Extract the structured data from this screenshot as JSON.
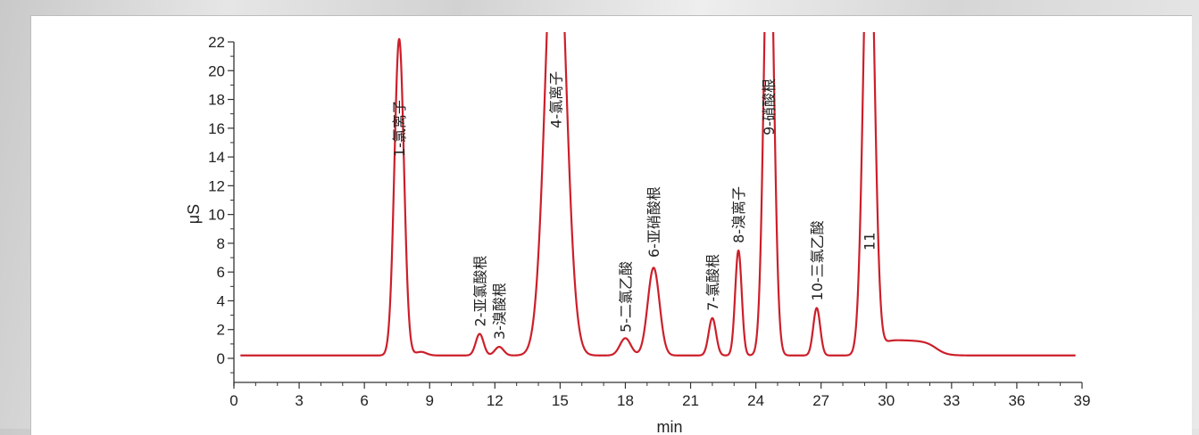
{
  "chart_data": {
    "type": "line",
    "xlabel": "min",
    "ylabel": "μS",
    "xlim": [
      0,
      39
    ],
    "ylim": [
      -2,
      22
    ],
    "xticks": [
      "0",
      "3",
      "6",
      "9",
      "12",
      "15",
      "18",
      "21",
      "24",
      "27",
      "30",
      "33",
      "36",
      "39"
    ],
    "yticks": [
      "0",
      "2",
      "4",
      "6",
      "8",
      "10",
      "12",
      "14",
      "16",
      "18",
      "20",
      "22"
    ],
    "series_color": "#cc1f2a",
    "baseline": 0.2,
    "peaks": [
      {
        "label": "1-氯离子",
        "rt": 7.6,
        "height": 22.0,
        "width": 0.22,
        "label_y": 14.0
      },
      {
        "label": "",
        "rt": 8.6,
        "height": 0.25,
        "width": 0.25,
        "label_y": 0
      },
      {
        "label": "2-亚氯酸根",
        "rt": 11.3,
        "height": 1.5,
        "width": 0.18,
        "label_y": 2.2
      },
      {
        "label": "3-溴酸根",
        "rt": 12.2,
        "height": 0.6,
        "width": 0.2,
        "label_y": 1.3
      },
      {
        "label": "4-氯离子",
        "rt": 14.8,
        "height": 34.0,
        "width": 0.45,
        "label_y": 16.0
      },
      {
        "label": "5-二氯乙酸",
        "rt": 18.0,
        "height": 1.2,
        "width": 0.25,
        "label_y": 1.8
      },
      {
        "label": "6-亚硝酸根",
        "rt": 19.3,
        "height": 6.1,
        "width": 0.27,
        "label_y": 7.0
      },
      {
        "label": "7-氯酸根",
        "rt": 22.0,
        "height": 2.6,
        "width": 0.17,
        "label_y": 3.3
      },
      {
        "label": "8-溴离子",
        "rt": 23.2,
        "height": 7.3,
        "width": 0.15,
        "label_y": 8.0
      },
      {
        "label": "9-硝酸根",
        "rt": 24.6,
        "height": 34.0,
        "width": 0.22,
        "label_y": 15.5
      },
      {
        "label": "10-三氯乙酸",
        "rt": 26.8,
        "height": 3.3,
        "width": 0.16,
        "label_y": 4.0
      },
      {
        "label": "11",
        "rt": 29.2,
        "height": 34.0,
        "width": 0.25,
        "label_y": 7.5
      }
    ],
    "plateau": {
      "start": 29.8,
      "end": 32.3,
      "height": 1.1
    }
  }
}
